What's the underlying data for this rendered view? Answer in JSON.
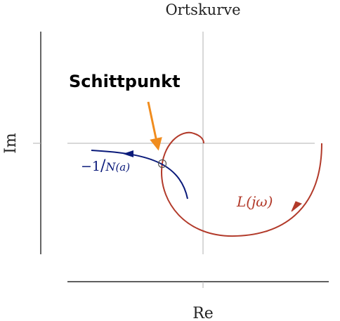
{
  "diagram": {
    "title": "Ortskurve",
    "x_axis_label": "Re",
    "y_axis_label": "Im",
    "callout_label": "Schittpunkt",
    "curves": {
      "nyquist": {
        "label": "L(jω)",
        "label_plain": "L(j",
        "label_omega": "ω",
        "label_close": ")"
      },
      "describing": {
        "label": "−1/N(a)",
        "label_minus": "−1",
        "label_slash": "/",
        "label_N": "N",
        "label_a": "(a)"
      }
    },
    "colors": {
      "nyquist": "#b23a2a",
      "describing": "#0a1a7a",
      "callout_arrow": "#f08c1e",
      "axes": "#000000",
      "grid": "#b0b0b0"
    }
  }
}
